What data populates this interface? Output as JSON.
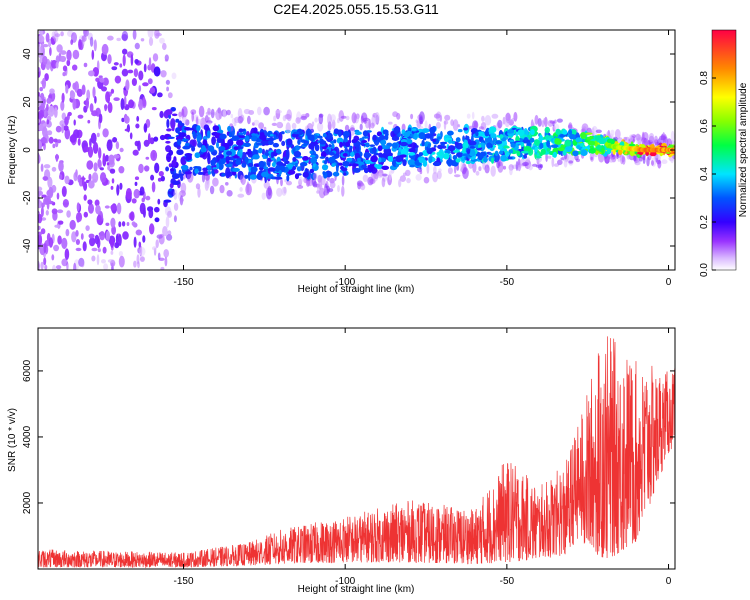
{
  "title": "C2E4.2025.055.15.53.G11",
  "chart_data": [
    {
      "type": "heatmap",
      "xlabel": "Height of straight line (km)",
      "ylabel": "Frequency (Hz)",
      "xlim": [
        -195,
        2
      ],
      "ylim": [
        -50,
        50
      ],
      "x_ticks": [
        -150,
        -100,
        -50,
        0
      ],
      "y_ticks": [
        -40,
        -20,
        0,
        20,
        40
      ],
      "colorbar": {
        "label": "Normalized spectral amplitude",
        "range": [
          0,
          1
        ],
        "ticks": [
          0.0,
          0.2,
          0.4,
          0.6,
          0.8
        ]
      },
      "grid": false,
      "ridge": [
        {
          "x": -195,
          "center": 0,
          "halfwidth": 48,
          "amp": 0.1
        },
        {
          "x": -160,
          "center": 0,
          "halfwidth": 40,
          "amp": 0.15
        },
        {
          "x": -150,
          "center": 0,
          "halfwidth": 10,
          "amp": 0.3
        },
        {
          "x": -120,
          "center": -2,
          "halfwidth": 10,
          "amp": 0.32
        },
        {
          "x": -100,
          "center": -1,
          "halfwidth": 9,
          "amp": 0.32
        },
        {
          "x": -80,
          "center": 1,
          "halfwidth": 8,
          "amp": 0.35
        },
        {
          "x": -60,
          "center": 2,
          "halfwidth": 7,
          "amp": 0.38
        },
        {
          "x": -40,
          "center": 3,
          "halfwidth": 6,
          "amp": 0.45
        },
        {
          "x": -25,
          "center": 3,
          "halfwidth": 4,
          "amp": 0.55
        },
        {
          "x": -15,
          "center": 1,
          "halfwidth": 2,
          "amp": 0.7
        },
        {
          "x": -8,
          "center": 0,
          "halfwidth": 1.5,
          "amp": 0.95
        },
        {
          "x": 0,
          "center": 0,
          "halfwidth": 1.5,
          "amp": 0.9
        }
      ]
    },
    {
      "type": "line",
      "xlabel": "Height of straight line (km)",
      "ylabel": "SNR (10 * v/v)",
      "xlim": [
        -195,
        2
      ],
      "ylim": [
        0,
        7300
      ],
      "x_ticks": [
        -150,
        -100,
        -50,
        0
      ],
      "y_ticks": [
        2000,
        4000,
        6000
      ],
      "grid": false,
      "series": [
        {
          "color": "#ee3333",
          "envelope": [
            {
              "x": -195,
              "low": 50,
              "high": 600
            },
            {
              "x": -150,
              "low": 50,
              "high": 500
            },
            {
              "x": -130,
              "low": 100,
              "high": 800
            },
            {
              "x": -120,
              "low": 150,
              "high": 1200
            },
            {
              "x": -100,
              "low": 200,
              "high": 1600
            },
            {
              "x": -80,
              "low": 200,
              "high": 2100
            },
            {
              "x": -60,
              "low": 150,
              "high": 1800
            },
            {
              "x": -50,
              "low": 200,
              "high": 3400
            },
            {
              "x": -40,
              "low": 300,
              "high": 2500
            },
            {
              "x": -32,
              "low": 400,
              "high": 3200
            },
            {
              "x": -28,
              "low": 900,
              "high": 4400
            },
            {
              "x": -20,
              "low": 200,
              "high": 7300
            },
            {
              "x": -10,
              "low": 800,
              "high": 6300
            },
            {
              "x": 0,
              "low": 3500,
              "high": 6000
            },
            {
              "x": 2,
              "low": 3800,
              "high": 6100
            }
          ]
        }
      ]
    }
  ]
}
